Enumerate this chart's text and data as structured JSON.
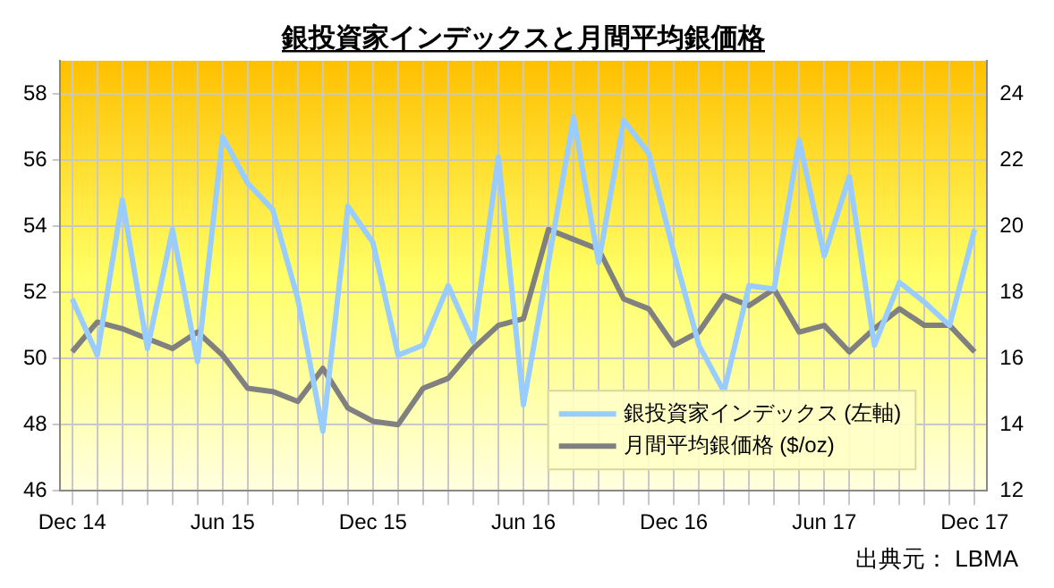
{
  "chart_data": {
    "type": "line",
    "title": "銀投資家インデックスと月間平均銀価格",
    "categories": [
      "Dec 14",
      null,
      null,
      null,
      null,
      null,
      "Jun 15",
      null,
      null,
      null,
      null,
      null,
      "Dec 15",
      null,
      null,
      null,
      null,
      null,
      "Jun 16",
      null,
      null,
      null,
      null,
      null,
      "Dec 16",
      null,
      null,
      null,
      null,
      null,
      "Jun 17",
      null,
      null,
      null,
      null,
      null,
      "Dec 17"
    ],
    "series": [
      {
        "name": "銀投資家インデックス (左軸)",
        "color": "#99ccff",
        "values": [
          51.8,
          50.1,
          54.8,
          50.3,
          53.9,
          49.9,
          56.7,
          55.3,
          54.5,
          51.8,
          47.8,
          54.6,
          53.5,
          50.1,
          50.4,
          52.2,
          50.5,
          56.1,
          48.6,
          52.9,
          57.3,
          52.9,
          57.2,
          56.2,
          53.2,
          50.4,
          49.0,
          52.2,
          52.1,
          56.6,
          53.1,
          55.5,
          50.4,
          52.3,
          51.7,
          51.0,
          53.9
        ]
      },
      {
        "name": "月間平均銀価格 ($/oz)",
        "color": "#808080",
        "axis": "y2",
        "values": [
          16.2,
          17.1,
          16.9,
          16.6,
          16.3,
          16.8,
          16.1,
          15.1,
          15.0,
          14.7,
          15.7,
          14.5,
          14.1,
          14.0,
          15.1,
          15.4,
          16.3,
          17.0,
          17.2,
          19.9,
          19.6,
          19.3,
          17.8,
          17.5,
          16.4,
          16.8,
          17.9,
          17.6,
          18.1,
          16.8,
          17.0,
          16.2,
          16.9,
          17.5,
          17.0,
          17.0,
          16.2
        ]
      }
    ],
    "ylim": [
      46,
      59
    ],
    "yticks": [
      46,
      48,
      50,
      52,
      54,
      56,
      58
    ],
    "y2lim": [
      12,
      25
    ],
    "y2ticks": [
      12,
      14,
      16,
      18,
      20,
      22,
      24
    ],
    "grid": true,
    "legend": "bottom right",
    "marker": "none",
    "line_style": "solid",
    "annotations": [
      "出典元： LBMA"
    ]
  }
}
